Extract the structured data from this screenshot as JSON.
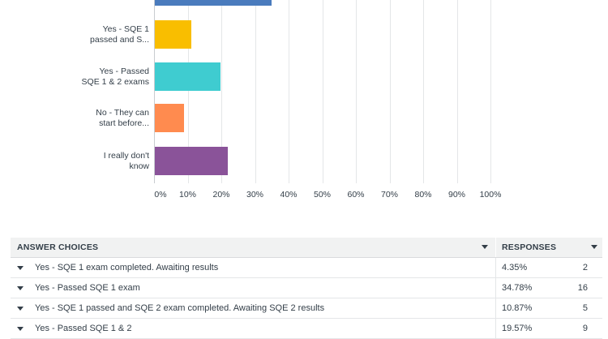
{
  "chart_data": {
    "type": "bar",
    "orientation": "horizontal",
    "categories": [
      "",
      "Yes - SQE 1 passed and S...",
      "Yes - Passed SQE 1 & 2 exams",
      "No - They can start before...",
      "I really don't know"
    ],
    "category_lines": [
      [],
      [
        "Yes - SQE 1",
        "passed and S..."
      ],
      [
        "Yes - Passed",
        "SQE 1 & 2 exams"
      ],
      [
        "No - They can",
        "start before..."
      ],
      [
        "I really don't",
        "know"
      ]
    ],
    "values": [
      34.78,
      10.87,
      19.57,
      8.7,
      21.74
    ],
    "colors": [
      "#4a7bbd",
      "#f9be00",
      "#3fccd0",
      "#ff8b4f",
      "#8a5399"
    ],
    "xlim": [
      0,
      100
    ],
    "x_ticks": [
      "0%",
      "10%",
      "20%",
      "30%",
      "40%",
      "50%",
      "60%",
      "70%",
      "80%",
      "90%",
      "100%"
    ],
    "grid": true
  },
  "table": {
    "headers": {
      "choice": "ANSWER CHOICES",
      "responses": "RESPONSES"
    },
    "rows": [
      {
        "choice": "Yes - SQE 1 exam completed. Awaiting results",
        "pct": "4.35%",
        "count": "2"
      },
      {
        "choice": "Yes - Passed SQE 1 exam",
        "pct": "34.78%",
        "count": "16"
      },
      {
        "choice": "Yes - SQE 1 passed and SQE 2 exam completed. Awaiting SQE 2 results",
        "pct": "10.87%",
        "count": "5"
      },
      {
        "choice": "Yes - Passed SQE 1 & 2",
        "pct": "19.57%",
        "count": "9"
      }
    ]
  }
}
